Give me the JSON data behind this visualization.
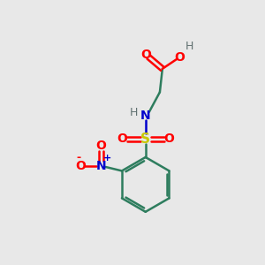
{
  "bg_color": "#e8e8e8",
  "bond_color": "#2e7d5e",
  "oxygen_color": "#ff0000",
  "nitrogen_color": "#0000cc",
  "sulfur_color": "#c8c800",
  "hydrogen_color": "#607070",
  "line_width": 1.8,
  "figsize": [
    3.0,
    3.0
  ],
  "dpi": 100,
  "xlim": [
    0,
    10
  ],
  "ylim": [
    0,
    10
  ]
}
